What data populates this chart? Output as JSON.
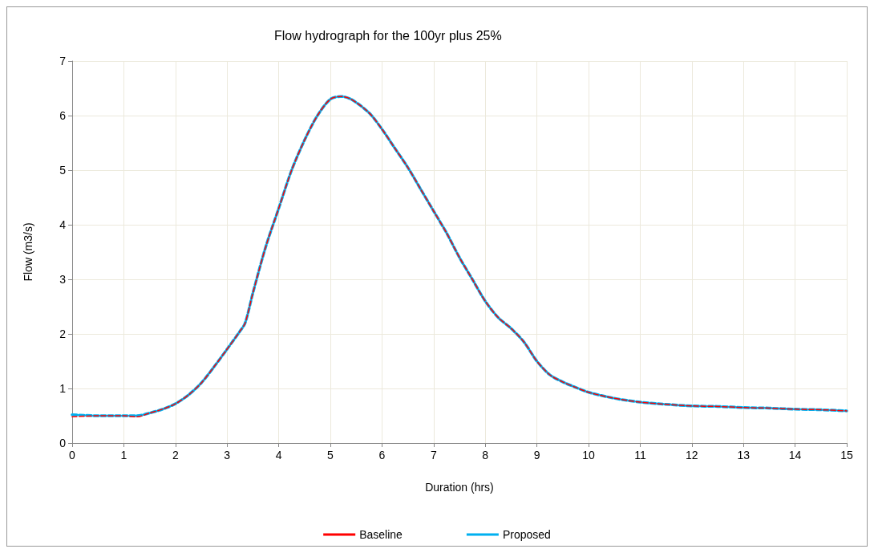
{
  "chart_data": {
    "type": "line",
    "title": "Flow hydrograph for the 100yr plus 25%",
    "xlabel": "Duration (hrs)",
    "ylabel": "Flow (m3/s)",
    "x": [
      0,
      0.5,
      1,
      1.25,
      1.5,
      1.75,
      2,
      2.25,
      2.5,
      2.75,
      3,
      3.25,
      3.35,
      3.5,
      3.75,
      4,
      4.25,
      4.5,
      4.75,
      5,
      5.2,
      5.4,
      5.75,
      6,
      6.25,
      6.5,
      6.75,
      7,
      7.25,
      7.5,
      7.75,
      8,
      8.25,
      8.5,
      8.75,
      9,
      9.25,
      9.5,
      9.75,
      10,
      10.5,
      11,
      11.5,
      12,
      12.5,
      13,
      13.5,
      14,
      14.5,
      15
    ],
    "series": [
      {
        "name": "Baseline",
        "color": "#ff0000",
        "line_style": "dashed",
        "values": [
          0.48,
          0.5,
          0.5,
          0.48,
          0.55,
          0.62,
          0.72,
          0.88,
          1.1,
          1.4,
          1.72,
          2.05,
          2.2,
          2.75,
          3.6,
          4.3,
          5.0,
          5.55,
          6.0,
          6.3,
          6.35,
          6.3,
          6.05,
          5.75,
          5.4,
          5.05,
          4.65,
          4.25,
          3.85,
          3.4,
          3.0,
          2.6,
          2.3,
          2.1,
          1.85,
          1.5,
          1.25,
          1.12,
          1.02,
          0.93,
          0.82,
          0.75,
          0.71,
          0.68,
          0.67,
          0.65,
          0.64,
          0.62,
          0.61,
          0.59
        ]
      },
      {
        "name": "Proposed",
        "color": "#00b0f0",
        "line_style": "dashed",
        "values": [
          0.52,
          0.5,
          0.5,
          0.5,
          0.55,
          0.62,
          0.72,
          0.88,
          1.1,
          1.4,
          1.72,
          2.05,
          2.2,
          2.75,
          3.6,
          4.3,
          5.0,
          5.55,
          6.0,
          6.3,
          6.35,
          6.3,
          6.05,
          5.75,
          5.4,
          5.05,
          4.65,
          4.25,
          3.85,
          3.4,
          3.0,
          2.6,
          2.3,
          2.1,
          1.85,
          1.5,
          1.25,
          1.12,
          1.02,
          0.93,
          0.82,
          0.75,
          0.71,
          0.68,
          0.67,
          0.65,
          0.64,
          0.62,
          0.61,
          0.59
        ]
      }
    ],
    "xlim": [
      0,
      15
    ],
    "xticks": [
      0,
      1,
      2,
      3,
      4,
      5,
      6,
      7,
      8,
      9,
      10,
      11,
      12,
      13,
      14,
      15
    ],
    "ylim": [
      0,
      7
    ],
    "yticks": [
      0,
      1,
      2,
      3,
      4,
      5,
      6,
      7
    ],
    "grid": true,
    "legend": "bottom",
    "marker": "none"
  }
}
